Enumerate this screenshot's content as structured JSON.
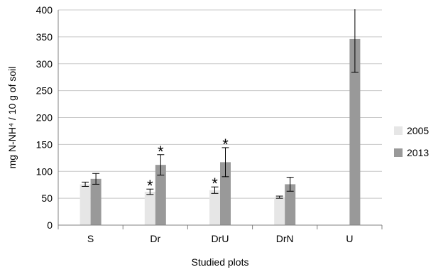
{
  "chart_data": {
    "type": "bar",
    "title": "",
    "xlabel": "Studied plots",
    "ylabel": "mg N-NH⁴ / 10 g of soil",
    "ylim": [
      0,
      400
    ],
    "yticks": [
      0,
      50,
      100,
      150,
      200,
      250,
      300,
      350,
      400
    ],
    "grid": "horizontal",
    "legend_position": "right",
    "categories": [
      "S",
      "Dr",
      "DrU",
      "DrN",
      "U"
    ],
    "series": [
      {
        "name": "2005",
        "color": "#e6e6e6",
        "values": [
          76,
          62,
          65,
          52,
          null
        ],
        "error": [
          4,
          5,
          6,
          2,
          null
        ],
        "significant": [
          false,
          true,
          true,
          false,
          false
        ]
      },
      {
        "name": "2013",
        "color": "#999999",
        "values": [
          86,
          112,
          117,
          76,
          346
        ],
        "error": [
          10,
          19,
          27,
          13,
          62
        ],
        "significant": [
          false,
          true,
          true,
          false,
          false
        ]
      }
    ],
    "significance_marker": "*"
  }
}
